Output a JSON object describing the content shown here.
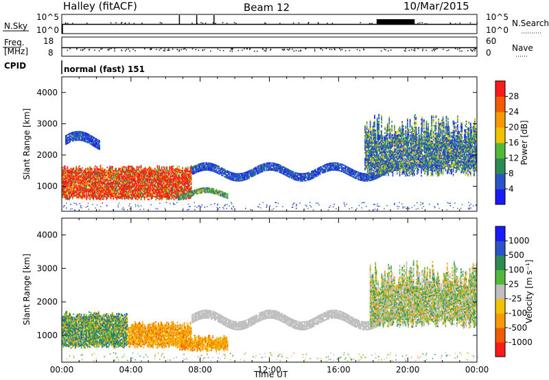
{
  "header": {
    "station": "Halley (fitACF)",
    "beam": "Beam 12",
    "date": "10/Mar/2015"
  },
  "top_panels": {
    "nsky_label": "N.Sky",
    "nsearch_label": "N.Search",
    "nsky_ticks": [
      "10^5",
      "10^0"
    ],
    "nsearch_ticks": [
      "10^5",
      "10^0"
    ],
    "freq_label_1": "Freq.",
    "freq_label_2": "[MHz]",
    "freq_ticks": [
      "18",
      "8"
    ],
    "nave_label": "Nave",
    "nave_ticks": [
      "60",
      "0"
    ],
    "cpid_label": "CPID",
    "cpid_value": "normal (fast) 151"
  },
  "colors": {
    "power_scale": [
      "#1a1aff",
      "#2a55c8",
      "#2e8a55",
      "#52b83a",
      "#f2c200",
      "#f59a00",
      "#f25a00",
      "#ff1a1a"
    ],
    "velocity_scale": [
      "#1a1aff",
      "#2a55c8",
      "#2e8a55",
      "#52b83a",
      "#bfbfbf",
      "#f2c200",
      "#f59a00",
      "#f25a00",
      "#ff1a1a"
    ],
    "ground_scatter": "#bfbfbf"
  },
  "chart_data": [
    {
      "type": "heatmap",
      "name": "power",
      "xlabel": "",
      "ylabel": "Slant Range [km]",
      "x_range_hours": [
        0,
        24
      ],
      "xlim": [
        "00:00",
        "24:00"
      ],
      "ylim": [
        200,
        4500
      ],
      "yticks": [
        "1000",
        "2000",
        "3000",
        "4000"
      ],
      "colorbar_label": "Power [dB]",
      "colorbar_ticks": [
        "4",
        "8",
        "12",
        "16",
        "20",
        "24",
        "28"
      ],
      "colorbar_range": [
        0,
        32
      ],
      "regions": [
        {
          "t0": 0.0,
          "t1": 7.5,
          "r0": 550,
          "r1": 1650,
          "level": "high_power"
        },
        {
          "t0": 6.7,
          "t1": 9.6,
          "r0": 500,
          "r1": 1000,
          "level": "medium_power"
        },
        {
          "t0": 0.2,
          "t1": 2.2,
          "r0": 2000,
          "r1": 2800,
          "level": "low_power"
        },
        {
          "t0": 7.5,
          "t1": 19.5,
          "r0": 1100,
          "r1": 1800,
          "level": "low_power"
        },
        {
          "t0": 17.5,
          "t1": 24.0,
          "r0": 1300,
          "r1": 3300,
          "level": "mixed_power"
        }
      ]
    },
    {
      "type": "heatmap",
      "name": "velocity",
      "xlabel": "Time UT",
      "ylabel": "Slant Range [km]",
      "x_range_hours": [
        0,
        24
      ],
      "xticks": [
        "00:00",
        "04:00",
        "08:00",
        "12:00",
        "16:00",
        "20:00",
        "00:00"
      ],
      "ylim": [
        200,
        4500
      ],
      "yticks": [
        "1000",
        "2000",
        "3000",
        "4000"
      ],
      "colorbar_label": "Velocity [m s⁻¹]",
      "colorbar_ticks": [
        "1000",
        "500",
        "100",
        "25",
        "-25",
        "-100",
        "-500",
        "-1000"
      ],
      "regions": [
        {
          "t0": 0.0,
          "t1": 3.8,
          "r0": 600,
          "r1": 1700,
          "level": "green_blue"
        },
        {
          "t0": 3.8,
          "t1": 7.5,
          "r0": 600,
          "r1": 1400,
          "level": "orange"
        },
        {
          "t0": 6.8,
          "t1": 9.6,
          "r0": 500,
          "r1": 1000,
          "level": "orange"
        },
        {
          "t0": 7.5,
          "t1": 19.5,
          "r0": 1100,
          "r1": 1800,
          "level": "ground_scatter"
        },
        {
          "t0": 17.8,
          "t1": 24.0,
          "r0": 1200,
          "r1": 3200,
          "level": "mixed_velocity"
        }
      ]
    }
  ]
}
